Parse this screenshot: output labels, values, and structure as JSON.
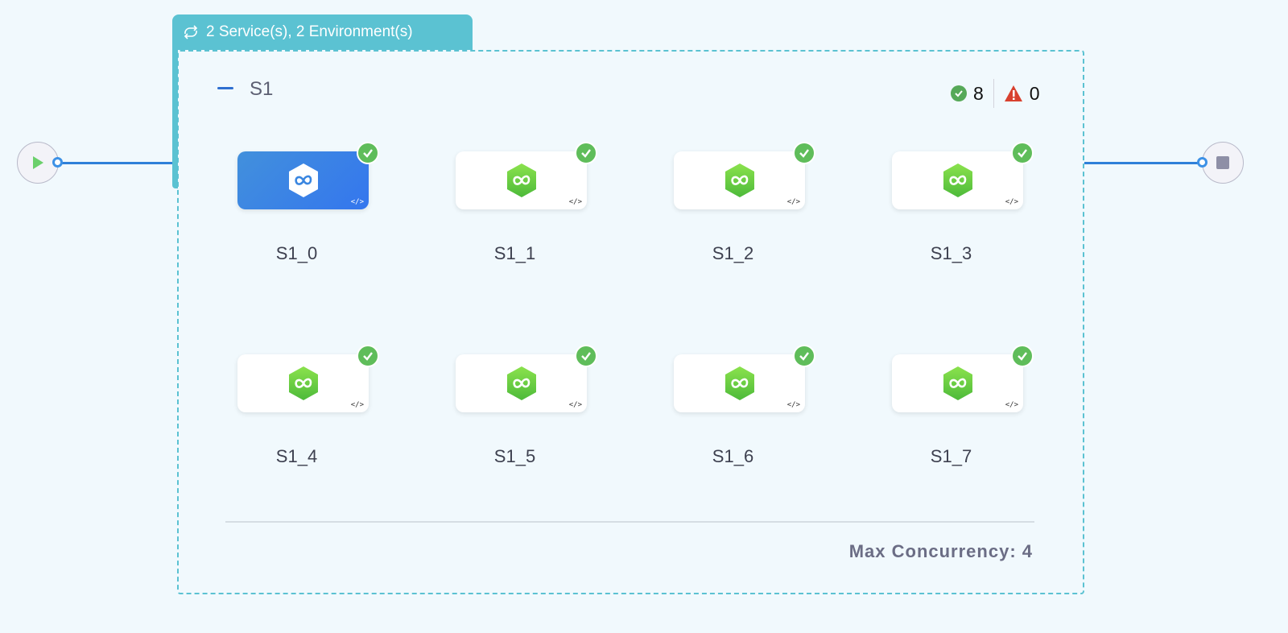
{
  "tab_label": "2 Service(s), 2 Environment(s)",
  "group": {
    "title": "S1",
    "success_count": "8",
    "warning_count": "0"
  },
  "nodes": [
    {
      "label": "S1_0",
      "selected": true
    },
    {
      "label": "S1_1"
    },
    {
      "label": "S1_2"
    },
    {
      "label": "S1_3"
    },
    {
      "label": "S1_4"
    },
    {
      "label": "S1_5"
    },
    {
      "label": "S1_6"
    },
    {
      "label": "S1_7"
    }
  ],
  "code_glyph": "</>",
  "footer": "Max Concurrency: 4",
  "colors": {
    "accent": "#5bc2d2",
    "success": "#5fbd5a",
    "warning": "#d8412f",
    "link": "#2f80d9"
  }
}
